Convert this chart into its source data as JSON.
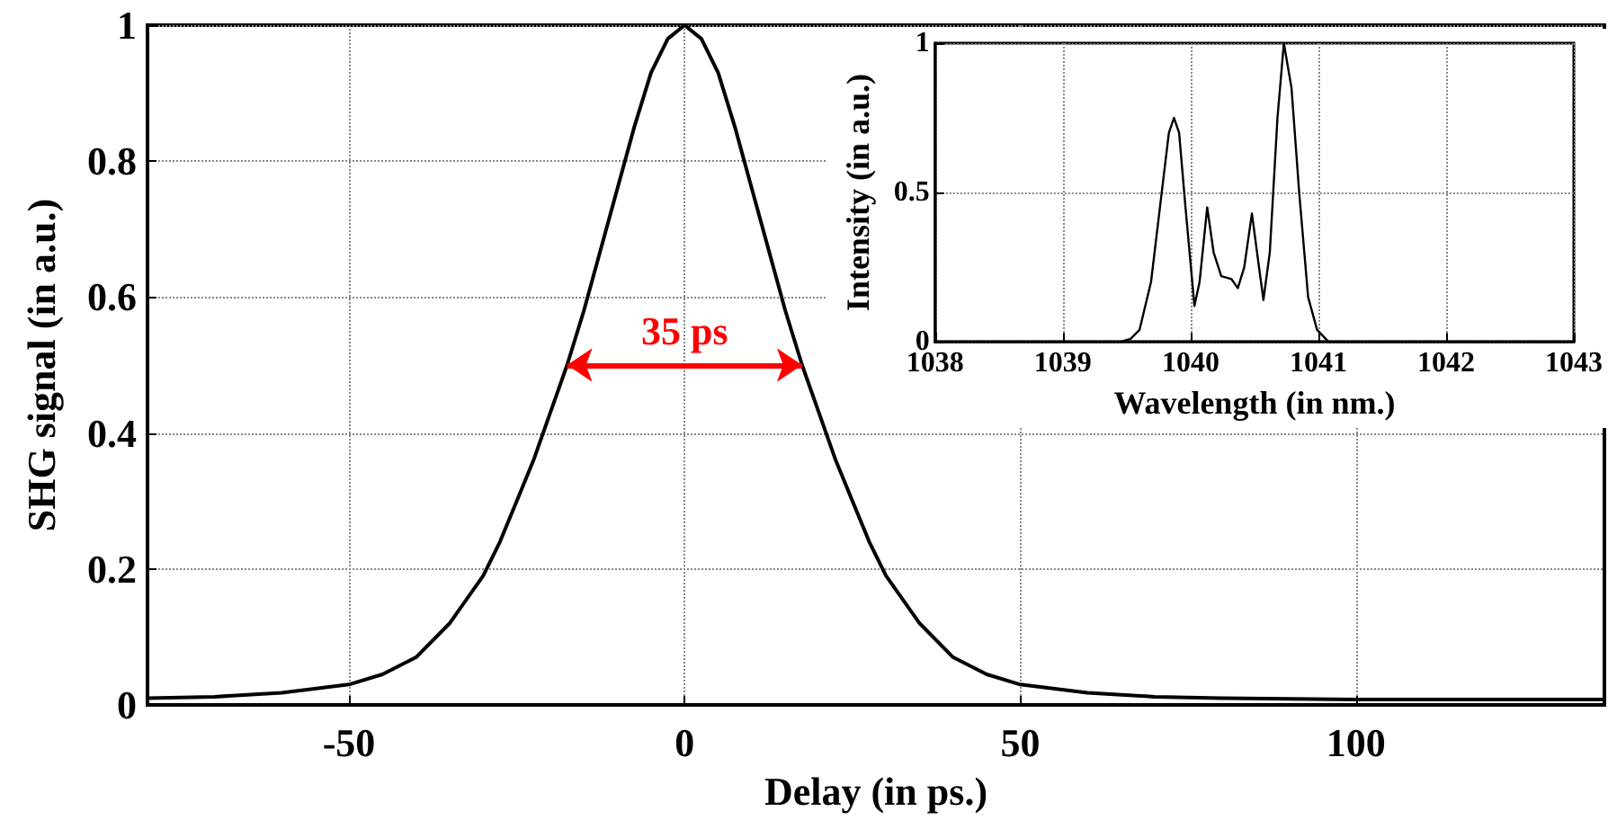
{
  "chart_data": [
    {
      "type": "line",
      "xlabel": "Delay (in ps.)",
      "ylabel": "SHG signal (in a.u.)",
      "xlim": [
        -80,
        137
      ],
      "ylim": [
        0,
        1
      ],
      "xticks": [
        -50,
        0,
        50,
        100
      ],
      "yticks": [
        0,
        0.2,
        0.4,
        0.6,
        0.8,
        1
      ],
      "grid": true,
      "marker": "none",
      "line_style": "solid",
      "annotations": [
        "35 ps"
      ],
      "series": [
        {
          "color": "#000000",
          "x": [
            -80,
            -70,
            -60,
            -50,
            -45,
            -40,
            -35,
            -30,
            -27.5,
            -25,
            -22.5,
            -20,
            -17.5,
            -15,
            -12.5,
            -10,
            -7.5,
            -5,
            -2.5,
            0,
            2.5,
            5,
            7.5,
            10,
            12.5,
            15,
            17.5,
            20,
            22.5,
            25,
            27.5,
            30,
            35,
            40,
            45,
            50,
            60,
            70,
            80,
            100,
            120,
            137
          ],
          "values": [
            0.01,
            0.012,
            0.018,
            0.03,
            0.045,
            0.07,
            0.12,
            0.19,
            0.24,
            0.3,
            0.36,
            0.43,
            0.5,
            0.58,
            0.67,
            0.76,
            0.85,
            0.93,
            0.98,
            1,
            0.98,
            0.93,
            0.85,
            0.76,
            0.67,
            0.58,
            0.5,
            0.43,
            0.36,
            0.3,
            0.24,
            0.19,
            0.12,
            0.07,
            0.045,
            0.03,
            0.018,
            0.012,
            0.01,
            0.008,
            0.008,
            0.008
          ]
        }
      ]
    },
    {
      "type": "line",
      "xlabel": "Wavelength (in nm.)",
      "ylabel": "Intensity (in a.u.)",
      "xlim": [
        1038,
        1043
      ],
      "ylim": [
        0,
        1
      ],
      "xticks": [
        1038,
        1039,
        1040,
        1041,
        1042,
        1043
      ],
      "yticks": [
        0,
        0.5,
        1
      ],
      "grid": true,
      "marker": "none",
      "line_style": "solid",
      "series": [
        {
          "color": "#000000",
          "x": [
            1038,
            1039,
            1039.45,
            1039.53,
            1039.6,
            1039.69,
            1039.76,
            1039.83,
            1039.87,
            1039.91,
            1039.96,
            1040.03,
            1040.07,
            1040.13,
            1040.18,
            1040.24,
            1040.32,
            1040.37,
            1040.42,
            1040.48,
            1040.52,
            1040.57,
            1040.62,
            1040.68,
            1040.73,
            1040.79,
            1040.85,
            1040.92,
            1040.99,
            1041.08,
            1042,
            1043
          ],
          "values": [
            0,
            0,
            0,
            0.01,
            0.04,
            0.2,
            0.45,
            0.7,
            0.75,
            0.7,
            0.45,
            0.12,
            0.2,
            0.45,
            0.3,
            0.22,
            0.21,
            0.18,
            0.25,
            0.43,
            0.3,
            0.14,
            0.3,
            0.75,
            1,
            0.85,
            0.5,
            0.15,
            0.04,
            0,
            0,
            0
          ]
        }
      ]
    }
  ]
}
